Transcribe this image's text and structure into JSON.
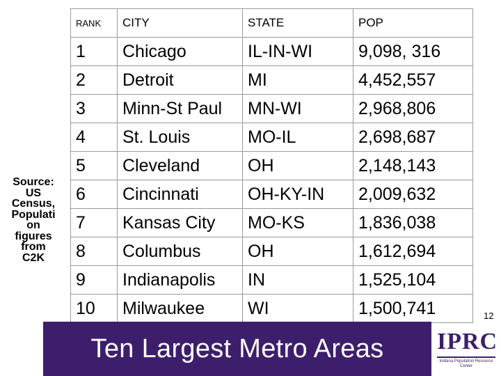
{
  "source_note": "Source:\nUS\nCensus,\nPopulati\non\nfigures\nfrom\nC2K",
  "table": {
    "headers": {
      "rank": "RANK",
      "city": "CITY",
      "state": "STATE",
      "pop": "POP"
    },
    "rows": [
      {
        "rank": "1",
        "city": "Chicago",
        "state": "IL-IN-WI",
        "pop": "9,098, 316"
      },
      {
        "rank": "2",
        "city": "Detroit",
        "state": "MI",
        "pop": "4,452,557"
      },
      {
        "rank": "3",
        "city": "Minn-St Paul",
        "state": "MN-WI",
        "pop": "2,968,806"
      },
      {
        "rank": "4",
        "city": "St. Louis",
        "state": "MO-IL",
        "pop": "2,698,687"
      },
      {
        "rank": "5",
        "city": "Cleveland",
        "state": "OH",
        "pop": "2,148,143"
      },
      {
        "rank": "6",
        "city": "Cincinnati",
        "state": "OH-KY-IN",
        "pop": "2,009,632"
      },
      {
        "rank": "7",
        "city": "Kansas City",
        "state": "MO-KS",
        "pop": "1,836,038"
      },
      {
        "rank": "8",
        "city": "Columbus",
        "state": "OH",
        "pop": "1,612,694"
      },
      {
        "rank": "9",
        "city": "Indianapolis",
        "state": "IN",
        "pop": "1,525,104"
      },
      {
        "rank": "10",
        "city": "Milwaukee",
        "state": "WI",
        "pop": "1,500,741"
      }
    ]
  },
  "slide_number": "12",
  "footer": {
    "title": "Ten Largest Metro Areas"
  },
  "logo": {
    "text": "IPRC",
    "subtitle": "Indiana Population Resource Center",
    "color": "#3d1e6c"
  },
  "colors": {
    "footer_bar": "#3d1e6c",
    "footer_text": "#ffffff"
  }
}
